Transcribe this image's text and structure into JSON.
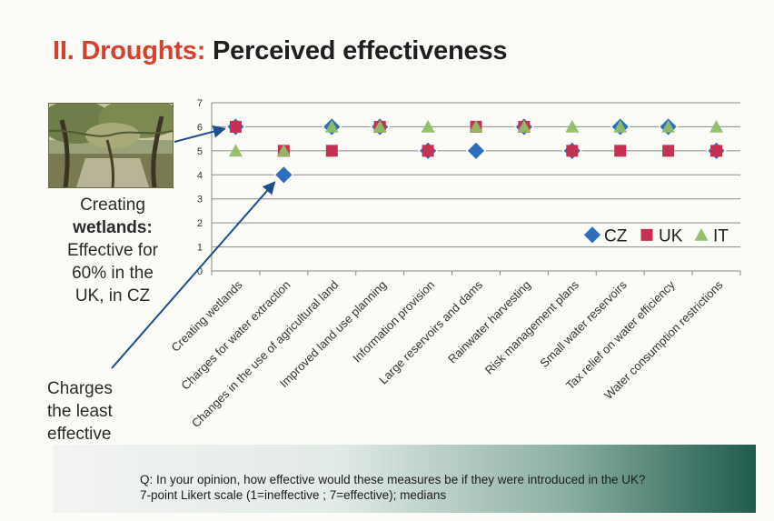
{
  "title": {
    "accent": "II. Droughts:",
    "main": "Perceived effectiveness"
  },
  "annotations": {
    "wetlands": {
      "line1": "Creating",
      "line2_bold": "wetlands",
      "line2_rest": ":",
      "line3": "Effective for",
      "line4": "60% in the",
      "line5": "UK, in CZ"
    },
    "charges": {
      "line1": "Charges",
      "line2": "the least",
      "line3": "effective"
    }
  },
  "footer": {
    "question": "Q: In your opinion, how effective would these measures be if they were introduced in the UK?",
    "scale": "7-point Likert scale (1=ineffective ; 7=effective); medians"
  },
  "colors": {
    "title_accent": "#d6412e",
    "CZ": "#2e6fbd",
    "UK": "#c43152",
    "IT": "#8fbe67",
    "arrow": "#1f4e8c"
  },
  "chart_data": {
    "type": "scatter",
    "categories": [
      "Creating wetlands",
      "Charges for water extraction",
      "Changes in the use of agricultural land",
      "Improved land use planning",
      "Information provision",
      "Large reservoirs and dams",
      "Rainwater harvesting",
      "Risk management plans",
      "Small water reservoirs",
      "Tax relief on water efficiency",
      "Water consumption restrictions"
    ],
    "series": [
      {
        "name": "CZ",
        "marker": "diamond",
        "values": [
          6,
          4,
          6,
          6,
          5,
          5,
          6,
          5,
          6,
          6,
          5
        ]
      },
      {
        "name": "UK",
        "marker": "square",
        "values": [
          6,
          5,
          5,
          6,
          5,
          6,
          6,
          5,
          5,
          5,
          5
        ]
      },
      {
        "name": "IT",
        "marker": "triangle",
        "values": [
          5,
          5,
          6,
          6,
          6,
          6,
          6,
          6,
          6,
          6,
          6
        ]
      }
    ],
    "ylim": [
      0,
      7
    ],
    "yticks": [
      0,
      1,
      2,
      3,
      4,
      5,
      6,
      7
    ],
    "grid": true,
    "legend": "bottom-right"
  }
}
